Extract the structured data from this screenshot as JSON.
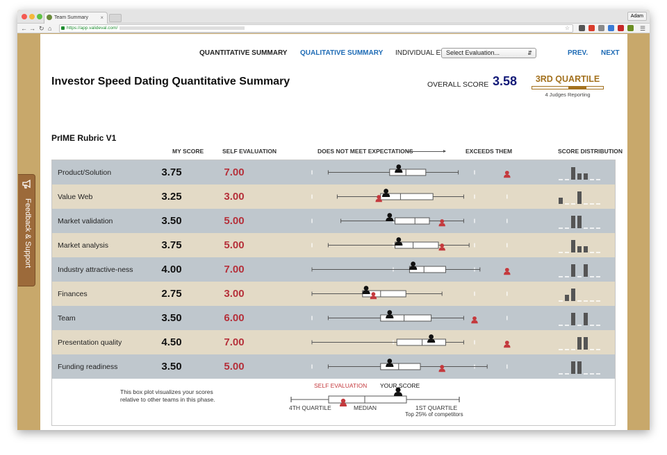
{
  "browser": {
    "tab_title": "Team Summary",
    "tab_close": "×",
    "user": "Adam",
    "url": "https://app.valideval.com/"
  },
  "nav": {
    "quantitative": "QUANTITATIVE SUMMARY",
    "qualitative": "QUALITATIVE SUMMARY",
    "individual": "INDIVIDUAL EVALS:",
    "select_value": "Select Evaluation...",
    "prev": "PREV.",
    "next": "NEXT"
  },
  "header": {
    "title": "Investor Speed Dating Quantitative Summary",
    "overall_label": "OVERALL SCORE",
    "overall_score": "3.58",
    "quartile": "3RD QUARTILE",
    "judges": "4 Judges Reporting"
  },
  "rubric": {
    "title": "PrIME Rubric V1",
    "col_my_score": "MY SCORE",
    "col_self_eval": "SELF EVALUATION",
    "col_scale_left": "DOES NOT MEET EXPECTATIONS",
    "col_scale_right": "EXCEEDS THEM",
    "col_distribution": "SCORE DISTRIBUTION"
  },
  "rows": [
    {
      "criterion": "Product/Solution",
      "my_score": "3.75",
      "self_eval": "7.00",
      "plot": {
        "wl": 0.09,
        "q1": 0.43,
        "med": 0.52,
        "q3": 0.63,
        "wr": 0.81,
        "me": 0.48,
        "self": 1.08
      },
      "dist": [
        0,
        0,
        1,
        0.5,
        0.5,
        0,
        0
      ]
    },
    {
      "criterion": "Value Web",
      "my_score": "3.25",
      "self_eval": "3.00",
      "plot": {
        "wl": 0.14,
        "q1": 0.38,
        "med": 0.49,
        "q3": 0.67,
        "wr": 0.84,
        "me": 0.41,
        "self": 0.37
      },
      "dist": [
        0.5,
        0,
        0,
        1,
        0,
        0,
        0
      ]
    },
    {
      "criterion": "Market validation",
      "my_score": "3.50",
      "self_eval": "5.00",
      "plot": {
        "wl": 0.16,
        "q1": 0.46,
        "med": 0.57,
        "q3": 0.65,
        "wr": 0.84,
        "me": 0.43,
        "self": 0.72
      },
      "dist": [
        0,
        0,
        1,
        1,
        0,
        0,
        0
      ]
    },
    {
      "criterion": "Market analysis",
      "my_score": "3.75",
      "self_eval": "5.00",
      "plot": {
        "wl": 0.09,
        "q1": 0.46,
        "med": 0.56,
        "q3": 0.7,
        "wr": 0.87,
        "me": 0.48,
        "self": 0.72
      },
      "dist": [
        0,
        0,
        1,
        0.5,
        0.5,
        0,
        0
      ]
    },
    {
      "criterion": "Industry attractive-ness",
      "my_score": "4.00",
      "self_eval": "7.00",
      "plot": {
        "wl": 0.0,
        "q1": 0.54,
        "med": 0.62,
        "q3": 0.74,
        "wr": 0.93,
        "me": 0.56,
        "self": 1.08
      },
      "dist": [
        0,
        0,
        1,
        0,
        1,
        0,
        0
      ]
    },
    {
      "criterion": "Finances",
      "my_score": "2.75",
      "self_eval": "3.00",
      "plot": {
        "wl": 0.0,
        "q1": 0.28,
        "med": 0.38,
        "q3": 0.52,
        "wr": 0.72,
        "me": 0.3,
        "self": 0.34
      },
      "dist": [
        0,
        0.5,
        1,
        0,
        0,
        0,
        0
      ]
    },
    {
      "criterion": "Team",
      "my_score": "3.50",
      "self_eval": "6.00",
      "plot": {
        "wl": 0.09,
        "q1": 0.38,
        "med": 0.51,
        "q3": 0.66,
        "wr": 0.84,
        "me": 0.43,
        "self": 0.9
      },
      "dist": [
        0,
        0,
        1,
        0,
        1,
        0,
        0
      ]
    },
    {
      "criterion": "Presentation quality",
      "my_score": "4.50",
      "self_eval": "7.00",
      "plot": {
        "wl": 0.0,
        "q1": 0.47,
        "med": 0.61,
        "q3": 0.74,
        "wr": 0.84,
        "me": 0.66,
        "self": 1.08
      },
      "dist": [
        0,
        0,
        0,
        1,
        1,
        0,
        0
      ]
    },
    {
      "criterion": "Funding readiness",
      "my_score": "3.50",
      "self_eval": "5.00",
      "plot": {
        "wl": 0.09,
        "q1": 0.38,
        "med": 0.48,
        "q3": 0.6,
        "wr": 0.97,
        "me": 0.43,
        "self": 0.72
      },
      "dist": [
        0,
        0,
        1,
        1,
        0,
        0,
        0
      ]
    }
  ],
  "legend": {
    "description": "This box plot visualizes your scores relative to other teams in this phase.",
    "self_evaluation": "SELF EVALUATION",
    "your_score": "YOUR SCORE",
    "fourth_quartile": "4TH QUARTILE",
    "median": "MEDIAN",
    "first_quartile": "1ST QUARTILE",
    "top_note": "Top 25% of competitors"
  },
  "feedback": {
    "label": "Feedback & Support"
  },
  "colors": {
    "row_odd": "#bfc7cd",
    "row_even": "#e3dac6",
    "self_red": "#c4393d",
    "link_blue": "#1e6bb5",
    "score_navy": "#131a78",
    "quartile_gold": "#a3711e",
    "dist_bar": "#555555"
  }
}
